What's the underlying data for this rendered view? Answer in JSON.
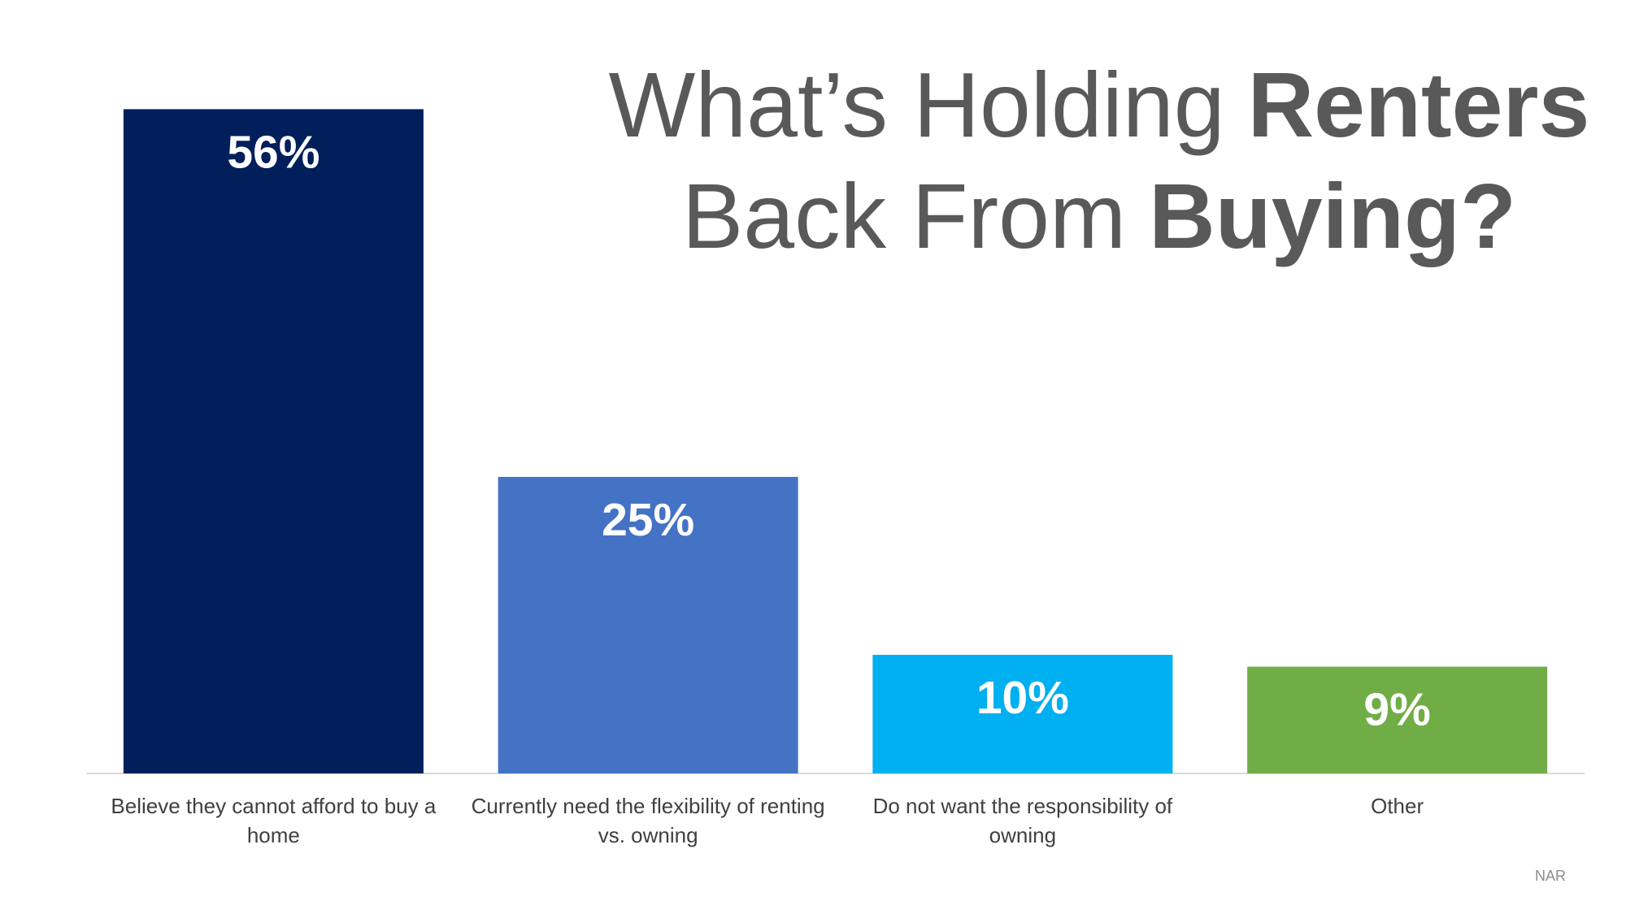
{
  "chart_data": {
    "type": "bar",
    "title": {
      "line1": "What’s Holding",
      "line1_bold": "Renters",
      "line2": "Back From",
      "line2_bold": "Buying?"
    },
    "categories": [
      "Believe they cannot afford to buy a home",
      "Currently need the flexibility of renting vs. owning",
      "Do not want the responsibility of owning",
      "Other"
    ],
    "values": [
      56,
      25,
      10,
      9
    ],
    "value_labels": [
      "56%",
      "25%",
      "10%",
      "9%"
    ],
    "colors": [
      "#001f5b",
      "#4472c4",
      "#00b0f0",
      "#70ad47"
    ],
    "ylim": [
      0,
      60
    ],
    "source": "NAR"
  }
}
